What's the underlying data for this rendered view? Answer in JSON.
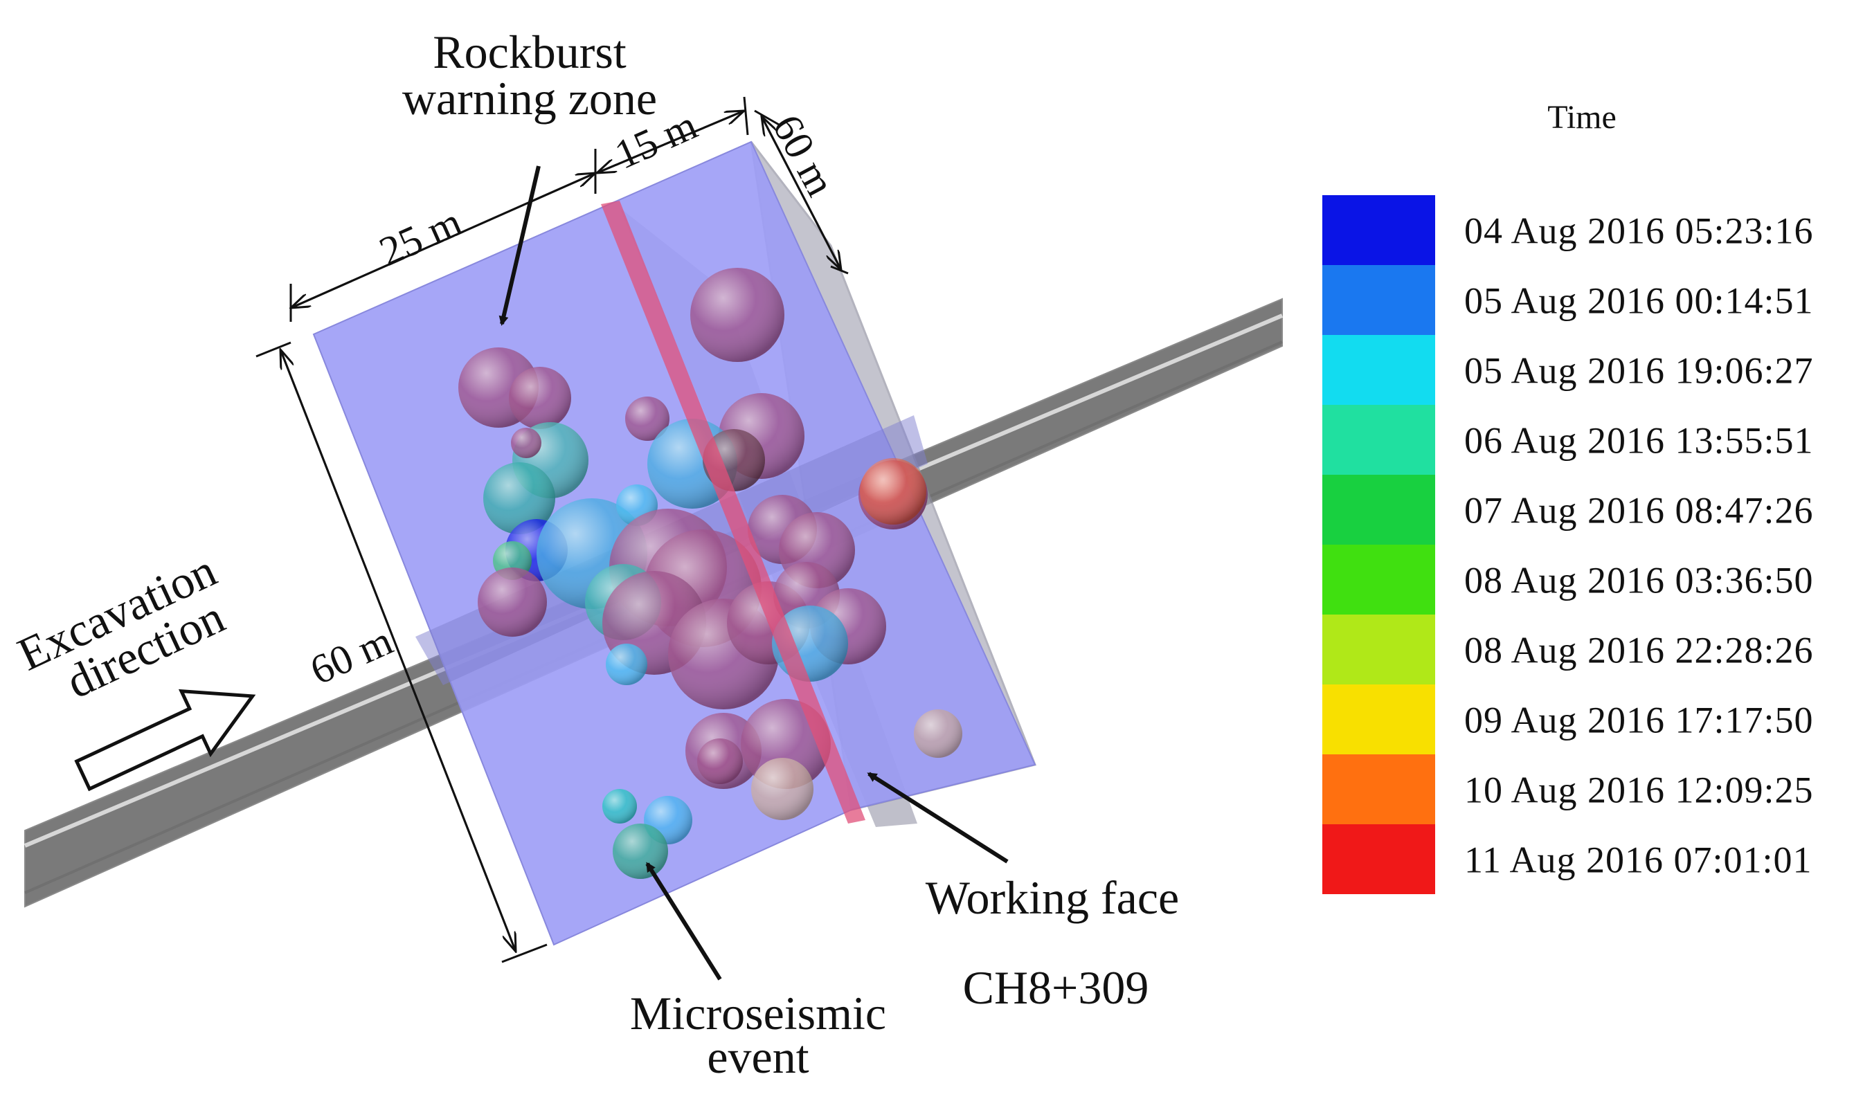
{
  "annotations": {
    "rockburst_line1": "Rockburst",
    "rockburst_line2": "warning zone",
    "excavation_line1": "Excavation",
    "excavation_line2": "direction",
    "working_face": "Working face",
    "chainage": "CH8+309",
    "microseismic_line1": "Microseismic",
    "microseismic_line2": "event"
  },
  "dimensions": {
    "width_25": "25 m",
    "width_15": "15 m",
    "depth_60": "60 m",
    "height_60": "60 m"
  },
  "legend": {
    "title": "Time",
    "items": [
      {
        "label": "04  Aug  2016  05:23:16",
        "color": "#0a14e6"
      },
      {
        "label": "05  Aug  2016  00:14:51",
        "color": "#1a78f0"
      },
      {
        "label": "05  Aug  2016  19:06:27",
        "color": "#12dcf0"
      },
      {
        "label": "06  Aug  2016  13:55:51",
        "color": "#20e0a0"
      },
      {
        "label": "07  Aug  2016  08:47:26",
        "color": "#18d040"
      },
      {
        "label": "08  Aug  2016  03:36:50",
        "color": "#40e010"
      },
      {
        "label": "08  Aug  2016  22:28:26",
        "color": "#b0e818"
      },
      {
        "label": "09  Aug  2016  17:17:50",
        "color": "#f8e000"
      },
      {
        "label": "10  Aug  2016  12:09:25",
        "color": "#ff7010"
      },
      {
        "label": "11  Aug  2016  07:01:01",
        "color": "#f01818"
      }
    ]
  },
  "colors": {
    "zone_fill": "#9c9cf6",
    "tunnel": "#b8b8b8",
    "working_face_line": "#e0507a",
    "event_default": "#9a4a86"
  }
}
